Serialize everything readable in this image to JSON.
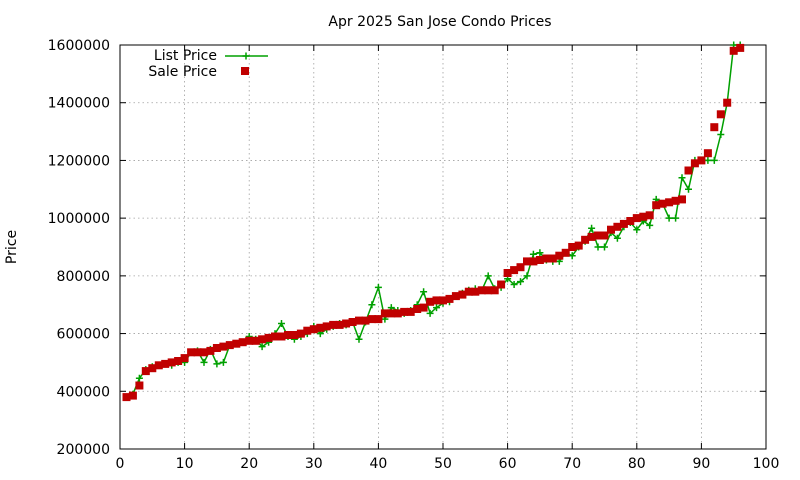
{
  "chart_data": {
    "type": "line",
    "title": "Apr 2025 San Jose Condo Prices",
    "xlabel": "",
    "ylabel": "Price",
    "xlim": [
      0,
      100
    ],
    "ylim": [
      200000,
      1600000
    ],
    "xticks": [
      "0",
      "10",
      "20",
      "30",
      "40",
      "50",
      "60",
      "70",
      "80",
      "90",
      "100"
    ],
    "yticks": [
      "200000",
      "400000",
      "600000",
      "800000",
      "1000000",
      "1200000",
      "1400000",
      "1600000"
    ],
    "grid": true,
    "legend_position": "top-left",
    "colors": {
      "list": "#00a000",
      "sale": "#c00000"
    },
    "x": [
      1,
      2,
      3,
      4,
      5,
      6,
      7,
      8,
      9,
      10,
      11,
      12,
      13,
      14,
      15,
      16,
      17,
      18,
      19,
      20,
      21,
      22,
      23,
      24,
      25,
      26,
      27,
      28,
      29,
      30,
      31,
      32,
      33,
      34,
      35,
      36,
      37,
      38,
      39,
      40,
      41,
      42,
      43,
      44,
      45,
      46,
      47,
      48,
      49,
      50,
      51,
      52,
      53,
      54,
      55,
      56,
      57,
      58,
      59,
      60,
      61,
      62,
      63,
      64,
      65,
      66,
      67,
      68,
      69,
      70,
      71,
      72,
      73,
      74,
      75,
      76,
      77,
      78,
      79,
      80,
      81,
      82,
      83,
      84,
      85,
      86,
      87,
      88,
      89,
      90,
      91,
      92,
      93,
      94,
      95,
      96
    ],
    "series": [
      {
        "name": "List Price",
        "style": "line-points",
        "values": [
          380000,
          390000,
          445000,
          475000,
          485000,
          490000,
          495000,
          490000,
          500000,
          500000,
          535000,
          540000,
          500000,
          545000,
          495000,
          500000,
          560000,
          565000,
          570000,
          590000,
          580000,
          555000,
          570000,
          600000,
          635000,
          590000,
          580000,
          590000,
          600000,
          625000,
          600000,
          615000,
          625000,
          635000,
          630000,
          640000,
          580000,
          640000,
          700000,
          760000,
          650000,
          690000,
          680000,
          670000,
          680000,
          700000,
          745000,
          670000,
          690000,
          705000,
          710000,
          730000,
          740000,
          750000,
          755000,
          750000,
          800000,
          755000,
          760000,
          790000,
          770000,
          780000,
          800000,
          875000,
          880000,
          855000,
          850000,
          850000,
          880000,
          870000,
          900000,
          920000,
          965000,
          900000,
          900000,
          950000,
          930000,
          970000,
          985000,
          960000,
          990000,
          975000,
          1065000,
          1050000,
          1000000,
          1000000,
          1140000,
          1100000,
          1200000,
          1200000,
          1200000,
          1200000,
          1290000,
          1400000,
          1600000,
          1600000
        ]
      },
      {
        "name": "Sale Price",
        "style": "points",
        "values": [
          380000,
          385000,
          420000,
          470000,
          480000,
          490000,
          495000,
          500000,
          505000,
          515000,
          535000,
          535000,
          535000,
          540000,
          550000,
          555000,
          560000,
          565000,
          570000,
          575000,
          575000,
          580000,
          585000,
          590000,
          590000,
          595000,
          595000,
          600000,
          610000,
          615000,
          620000,
          625000,
          630000,
          630000,
          635000,
          640000,
          645000,
          645000,
          650000,
          650000,
          670000,
          670000,
          670000,
          675000,
          675000,
          685000,
          690000,
          710000,
          715000,
          715000,
          720000,
          730000,
          735000,
          745000,
          745000,
          750000,
          750000,
          750000,
          770000,
          810000,
          820000,
          830000,
          850000,
          850000,
          855000,
          860000,
          860000,
          870000,
          880000,
          900000,
          905000,
          925000,
          935000,
          940000,
          940000,
          960000,
          970000,
          980000,
          990000,
          1000000,
          1005000,
          1010000,
          1045000,
          1050000,
          1055000,
          1060000,
          1065000,
          1165000,
          1190000,
          1200000,
          1225000,
          1315000,
          1360000,
          1400000,
          1580000,
          1590000
        ]
      }
    ]
  }
}
